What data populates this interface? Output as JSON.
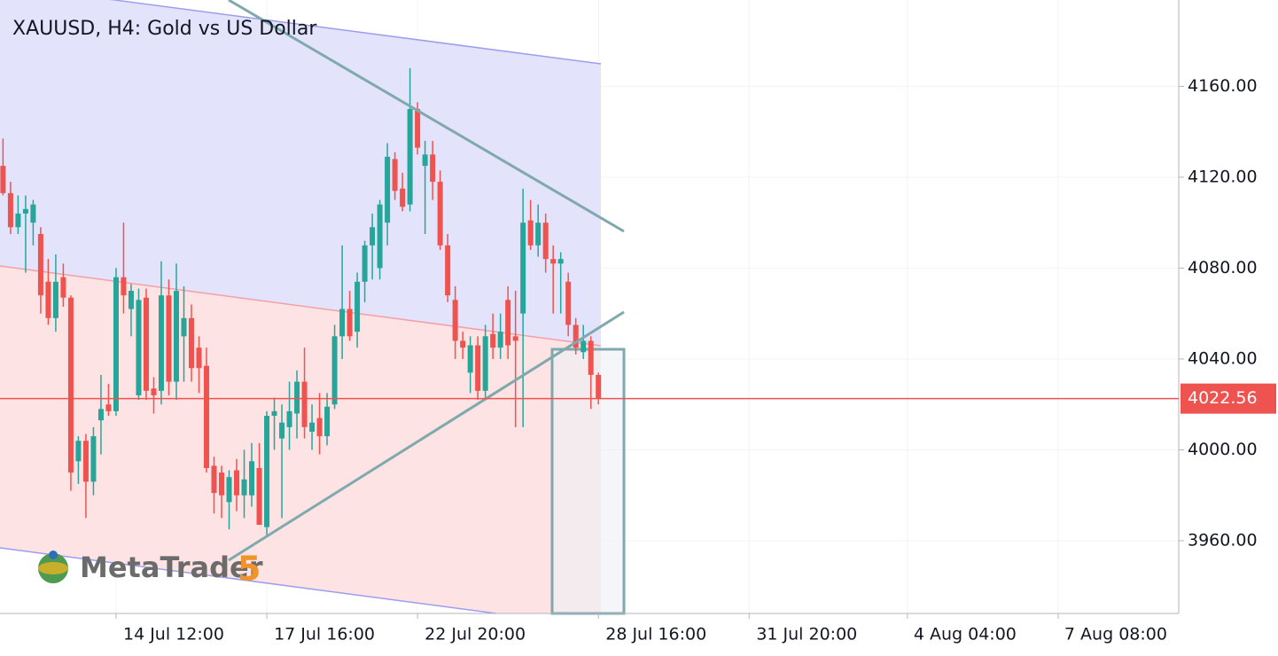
{
  "chart_data": {
    "type": "candlestick",
    "title": "XAUUSD, H4: Gold vs US Dollar",
    "watermark": [
      "MetaTrader",
      "5"
    ],
    "up_color": "#26a69a",
    "down_color": "#ef5350",
    "last_price": 4022.56,
    "last_price_color": "#ef5350",
    "grid": true,
    "xlim": [
      -0.4,
      156
    ],
    "ylim": [
      3928,
      4198
    ],
    "xticks": [
      {
        "value": 15,
        "label": "14 Jul 12:00"
      },
      {
        "value": 35,
        "label": "17 Jul 16:00"
      },
      {
        "value": 55,
        "label": "22 Jul 20:00"
      },
      {
        "value": 79,
        "label": "28 Jul 16:00"
      },
      {
        "value": 99,
        "label": "31 Jul 20:00"
      },
      {
        "value": 120,
        "label": "4 Aug 04:00"
      },
      {
        "value": 140,
        "label": "7 Aug 08:00"
      }
    ],
    "yticks": [
      {
        "value": 3960,
        "label": "3960.00"
      },
      {
        "value": 4000,
        "label": "4000.00"
      },
      {
        "value": 4040,
        "label": "4040.00"
      },
      {
        "value": 4080,
        "label": "4080.00"
      },
      {
        "value": 4120,
        "label": "4120.00"
      },
      {
        "value": 4160,
        "label": "4160.00"
      }
    ],
    "open": [
      4125,
      4113,
      4098,
      4104,
      4100,
      4095,
      4074,
      4058,
      4076,
      4067,
      3995,
      4004,
      3986,
      4013,
      4020,
      4017,
      4076,
      4062,
      4024,
      4067,
      4027,
      4026,
      4068,
      4030,
      4050,
      4058,
      4045,
      4037,
      3993,
      3990,
      3977,
      3991,
      3980,
      3980,
      3992,
      3966,
      4015,
      4005,
      4010,
      4016,
      4030,
      4008,
      4014,
      4006,
      4020,
      4050,
      4062,
      4052,
      4074,
      4090,
      4080,
      4100,
      4128,
      4115,
      4108,
      4150,
      4125,
      4130,
      4118,
      4090,
      4066,
      4048,
      4034,
      4046,
      4026,
      4051,
      4045,
      4066,
      4050,
      4060,
      4101,
      4090,
      4100,
      4084,
      4082,
      4074,
      4055,
      4043,
      4048,
      4033
    ],
    "high": [
      4137,
      4118,
      4112,
      4112,
      4110,
      4098,
      4084,
      4086,
      4082,
      4068,
      4006,
      4007,
      4010,
      4033,
      4029,
      4080,
      4100,
      4073,
      4071,
      4071,
      4032,
      4083,
      4075,
      4082,
      4072,
      4064,
      4050,
      4045,
      3997,
      3993,
      3991,
      3996,
      4000,
      4003,
      4003,
      4017,
      4023,
      4020,
      4030,
      4035,
      4045,
      4020,
      4025,
      4025,
      4055,
      4090,
      4070,
      4078,
      4092,
      4104,
      4110,
      4135,
      4131,
      4122,
      4168,
      4153,
      4136,
      4136,
      4123,
      4095,
      4072,
      4052,
      4050,
      4050,
      4055,
      4060,
      4060,
      4072,
      4070,
      4115,
      4110,
      4108,
      4104,
      4090,
      4087,
      4078,
      4058,
      4055,
      4050,
      4034
    ],
    "low": [
      4112,
      4095,
      4095,
      4078,
      4090,
      4060,
      4055,
      4052,
      4063,
      3982,
      3985,
      3970,
      3980,
      3998,
      4015,
      4015,
      4060,
      4050,
      4022,
      4022,
      4016,
      4020,
      4024,
      4022,
      4030,
      4030,
      4025,
      3990,
      3972,
      3970,
      3965,
      3973,
      3970,
      3975,
      3968,
      3962,
      4000,
      3970,
      4000,
      4005,
      4005,
      4000,
      3998,
      4002,
      4018,
      4040,
      4048,
      4045,
      4065,
      4075,
      4075,
      4090,
      4110,
      4105,
      4105,
      4130,
      4095,
      4110,
      4088,
      4065,
      4040,
      4040,
      4025,
      4022,
      4022,
      4040,
      4040,
      4040,
      4010,
      4010,
      4088,
      4085,
      4078,
      4060,
      4060,
      4050,
      4042,
      4040,
      4018,
      4020
    ],
    "close": [
      4113,
      4098,
      4104,
      4106,
      4108,
      4068,
      4058,
      4074,
      4067,
      3990,
      4004,
      3986,
      4006,
      4018,
      4017,
      4076,
      4068,
      4070,
      4066,
      4026,
      4024,
      4068,
      4030,
      4070,
      4058,
      4036,
      4036,
      3992,
      3981,
      3980,
      3988,
      3980,
      3987,
      3995,
      3967,
      4015,
      4017,
      4012,
      4017,
      4030,
      4010,
      4012,
      4006,
      4019,
      4050,
      4062,
      4050,
      4074,
      4090,
      4098,
      4108,
      4129,
      4114,
      4107,
      4150,
      4133,
      4130,
      4118,
      4090,
      4068,
      4048,
      4045,
      4046,
      4026,
      4050,
      4045,
      4052,
      4046,
      4048,
      4100,
      4090,
      4100,
      4084,
      4082,
      4084,
      4055,
      4045,
      4048,
      4033,
      4022.56
    ]
  }
}
